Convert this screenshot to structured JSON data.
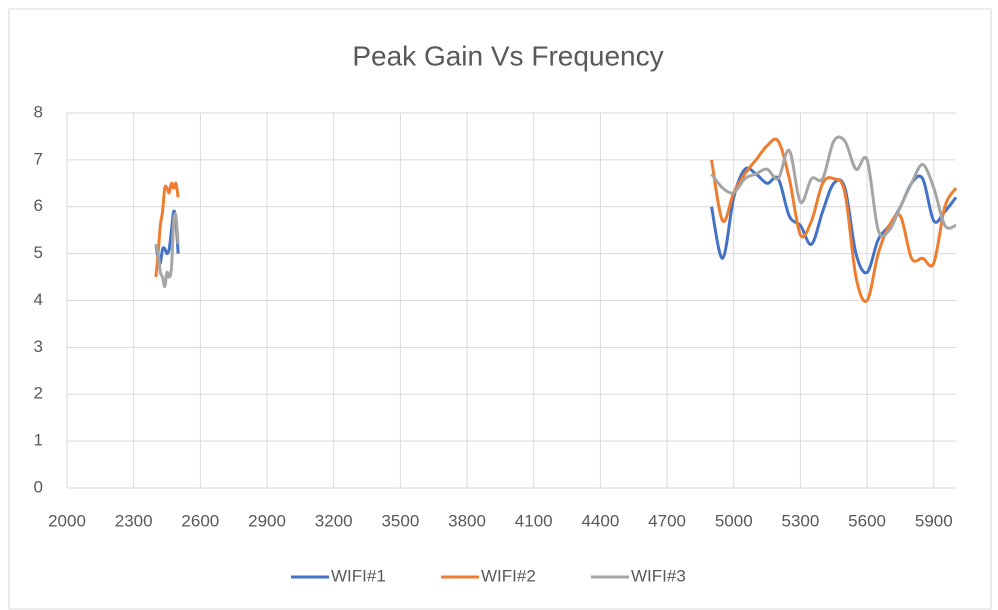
{
  "chart_data": {
    "type": "line",
    "title": "Peak Gain Vs Frequency",
    "x": [
      2400,
      2410,
      2420,
      2430,
      2440,
      2450,
      2460,
      2470,
      2480,
      2490,
      2500,
      null,
      4900,
      4950,
      5000,
      5050,
      5100,
      5150,
      5200,
      5250,
      5300,
      5350,
      5400,
      5450,
      5500,
      5550,
      5600,
      5650,
      5700,
      5750,
      5800,
      5850,
      5900,
      5950,
      6000
    ],
    "series": [
      {
        "name": "WIFI#1",
        "color": "#4472c4",
        "values": [
          5.2,
          4.9,
          4.8,
          5.1,
          5.1,
          5.0,
          5.1,
          5.5,
          5.9,
          5.7,
          5.0,
          null,
          6.0,
          4.9,
          6.2,
          6.8,
          6.7,
          6.5,
          6.6,
          5.8,
          5.6,
          5.2,
          5.9,
          6.5,
          6.4,
          5.0,
          4.6,
          5.3,
          5.6,
          6.0,
          6.5,
          6.6,
          5.7,
          5.9,
          6.2
        ]
      },
      {
        "name": "WIFI#2",
        "color": "#ed7d31",
        "values": [
          4.5,
          5.0,
          5.6,
          5.9,
          6.4,
          6.4,
          6.3,
          6.5,
          6.4,
          6.5,
          6.2,
          null,
          7.0,
          5.7,
          6.3,
          6.7,
          7.0,
          7.3,
          7.4,
          6.6,
          5.4,
          5.7,
          6.5,
          6.6,
          6.3,
          4.5,
          4.0,
          5.0,
          5.6,
          5.8,
          4.9,
          4.9,
          4.8,
          6.0,
          6.4
        ]
      },
      {
        "name": "WIFI#3",
        "color": "#a5a5a5",
        "values": [
          5.2,
          5.0,
          4.6,
          4.5,
          4.3,
          4.6,
          4.5,
          4.7,
          5.7,
          5.8,
          5.2,
          null,
          6.7,
          6.4,
          6.3,
          6.6,
          6.7,
          6.8,
          6.6,
          7.2,
          6.1,
          6.6,
          6.6,
          7.4,
          7.4,
          6.8,
          7.0,
          5.5,
          5.5,
          6.0,
          6.5,
          6.9,
          6.4,
          5.6,
          5.6
        ]
      }
    ],
    "xlim": [
      2000,
      6000
    ],
    "xticks": [
      2000,
      2300,
      2600,
      2900,
      3200,
      3500,
      3800,
      4100,
      4400,
      4700,
      5000,
      5300,
      5600,
      5900
    ],
    "ylim": [
      0,
      8
    ],
    "yticks": [
      0,
      1,
      2,
      3,
      4,
      5,
      6,
      7,
      8
    ],
    "grid": true,
    "smooth": true,
    "legend": "bottom"
  }
}
